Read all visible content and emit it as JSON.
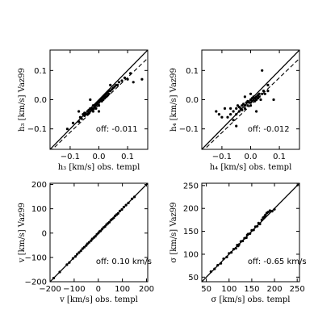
{
  "chart_data": [
    {
      "id": "h3",
      "type": "scatter",
      "title": "",
      "xlabel": "h₃ [km/s] obs. templ",
      "ylabel": "h₃ [km/s] Vaz99",
      "xlim": [
        -0.17,
        0.17
      ],
      "ylim": [
        -0.17,
        0.17
      ],
      "xticks": [
        -0.1,
        0.0,
        0.1
      ],
      "yticks": [
        -0.1,
        0.0,
        0.1
      ],
      "tick_labels": [
        "−0.1",
        "0.0",
        "0.1"
      ],
      "annotation": "off: -0.011",
      "identity_line": true,
      "offset_line": -0.011,
      "points": [
        [
          -0.11,
          -0.1
        ],
        [
          -0.09,
          -0.08
        ],
        [
          -0.07,
          -0.075
        ],
        [
          -0.065,
          -0.06
        ],
        [
          -0.06,
          -0.065
        ],
        [
          -0.055,
          -0.05
        ],
        [
          -0.05,
          -0.055
        ],
        [
          -0.05,
          -0.045
        ],
        [
          -0.045,
          -0.05
        ],
        [
          -0.04,
          -0.04
        ],
        [
          -0.04,
          -0.05
        ],
        [
          -0.035,
          -0.045
        ],
        [
          -0.035,
          -0.035
        ],
        [
          -0.03,
          -0.04
        ],
        [
          -0.03,
          -0.03
        ],
        [
          -0.025,
          -0.035
        ],
        [
          -0.025,
          -0.03
        ],
        [
          -0.02,
          -0.03
        ],
        [
          -0.02,
          -0.02
        ],
        [
          -0.02,
          -0.04
        ],
        [
          -0.015,
          -0.025
        ],
        [
          -0.015,
          -0.02
        ],
        [
          -0.01,
          -0.02
        ],
        [
          -0.01,
          -0.015
        ],
        [
          -0.01,
          -0.03
        ],
        [
          -0.005,
          -0.015
        ],
        [
          -0.005,
          -0.01
        ],
        [
          0.0,
          -0.01
        ],
        [
          0.0,
          -0.005
        ],
        [
          0.0,
          -0.02
        ],
        [
          0.005,
          -0.005
        ],
        [
          0.005,
          0.0
        ],
        [
          0.01,
          -0.005
        ],
        [
          0.01,
          0.0
        ],
        [
          0.01,
          0.005
        ],
        [
          0.015,
          0.0
        ],
        [
          0.015,
          0.01
        ],
        [
          0.02,
          0.005
        ],
        [
          0.02,
          0.01
        ],
        [
          0.02,
          0.015
        ],
        [
          0.025,
          0.01
        ],
        [
          0.025,
          0.02
        ],
        [
          0.03,
          0.015
        ],
        [
          0.03,
          0.025
        ],
        [
          0.035,
          0.02
        ],
        [
          0.035,
          0.03
        ],
        [
          0.04,
          0.03
        ],
        [
          0.045,
          0.035
        ],
        [
          0.05,
          0.04
        ],
        [
          0.055,
          0.045
        ],
        [
          0.06,
          0.05
        ],
        [
          0.065,
          0.05
        ],
        [
          0.07,
          0.06
        ],
        [
          0.08,
          0.065
        ],
        [
          0.09,
          0.075
        ],
        [
          0.1,
          0.07
        ],
        [
          0.11,
          0.09
        ],
        [
          0.15,
          0.07
        ],
        [
          0.12,
          0.06
        ],
        [
          -0.03,
          0.0
        ],
        [
          0.0,
          -0.04
        ],
        [
          -0.07,
          -0.04
        ],
        [
          0.04,
          0.05
        ]
      ]
    },
    {
      "id": "h4",
      "type": "scatter",
      "title": "",
      "xlabel": "h₄ [km/s] obs. templ",
      "ylabel": "h₄ [km/s] Vaz99",
      "xlim": [
        -0.17,
        0.17
      ],
      "ylim": [
        -0.17,
        0.17
      ],
      "xticks": [
        -0.1,
        0.0,
        0.1
      ],
      "yticks": [
        -0.1,
        0.0,
        0.1
      ],
      "tick_labels": [
        "−0.1",
        "0.0",
        "0.1"
      ],
      "annotation": "off: -0.012",
      "identity_line": true,
      "offset_line": -0.012,
      "points": [
        [
          -0.12,
          -0.04
        ],
        [
          -0.11,
          -0.05
        ],
        [
          -0.09,
          -0.03
        ],
        [
          -0.08,
          -0.06
        ],
        [
          -0.07,
          -0.05
        ],
        [
          -0.07,
          -0.03
        ],
        [
          -0.06,
          -0.07
        ],
        [
          -0.06,
          -0.04
        ],
        [
          -0.05,
          -0.05
        ],
        [
          -0.05,
          -0.03
        ],
        [
          -0.045,
          -0.02
        ],
        [
          -0.04,
          -0.04
        ],
        [
          -0.04,
          -0.025
        ],
        [
          -0.035,
          -0.03
        ],
        [
          -0.03,
          -0.02
        ],
        [
          -0.03,
          -0.035
        ],
        [
          -0.025,
          -0.015
        ],
        [
          -0.02,
          -0.02
        ],
        [
          -0.02,
          -0.03
        ],
        [
          -0.015,
          -0.01
        ],
        [
          -0.01,
          -0.02
        ],
        [
          -0.01,
          -0.005
        ],
        [
          -0.005,
          -0.01
        ],
        [
          0.0,
          -0.01
        ],
        [
          0.0,
          0.0
        ],
        [
          0.0,
          -0.02
        ],
        [
          0.005,
          -0.005
        ],
        [
          0.005,
          0.005
        ],
        [
          0.01,
          0.0
        ],
        [
          0.01,
          0.01
        ],
        [
          0.015,
          -0.005
        ],
        [
          0.015,
          0.005
        ],
        [
          0.02,
          0.0
        ],
        [
          0.02,
          0.01
        ],
        [
          0.025,
          0.005
        ],
        [
          0.025,
          0.015
        ],
        [
          0.03,
          0.01
        ],
        [
          0.03,
          0.02
        ],
        [
          0.035,
          0.0
        ],
        [
          0.04,
          0.02
        ],
        [
          0.045,
          0.03
        ],
        [
          0.05,
          0.02
        ],
        [
          0.06,
          0.03
        ],
        [
          0.02,
          -0.04
        ],
        [
          -0.02,
          0.01
        ],
        [
          0.0,
          0.02
        ],
        [
          0.04,
          0.1
        ],
        [
          0.06,
          0.05
        ],
        [
          -0.05,
          -0.09
        ],
        [
          0.08,
          0.0
        ],
        [
          -0.1,
          -0.06
        ]
      ]
    },
    {
      "id": "v",
      "type": "scatter",
      "title": "",
      "xlabel": "v [km/s] obs. templ",
      "ylabel": "v [km/s] Vaz99",
      "xlim": [
        -200,
        205
      ],
      "ylim": [
        -200,
        205
      ],
      "xticks": [
        -200,
        -100,
        0,
        100,
        200
      ],
      "yticks": [
        -200,
        -100,
        0,
        100,
        200
      ],
      "tick_labels": [
        "−200",
        "−100",
        "0",
        "100",
        "200"
      ],
      "annotation": "off: 0.10 km/s",
      "identity_line": true,
      "offset_line": null,
      "points": [
        [
          -185,
          -185
        ],
        [
          -160,
          -160
        ],
        [
          -130,
          -130
        ],
        [
          -120,
          -121
        ],
        [
          -105,
          -104
        ],
        [
          -95,
          -96
        ],
        [
          -88,
          -87
        ],
        [
          -80,
          -80
        ],
        [
          -72,
          -73
        ],
        [
          -65,
          -64
        ],
        [
          -58,
          -58
        ],
        [
          -50,
          -51
        ],
        [
          -45,
          -44
        ],
        [
          -38,
          -38
        ],
        [
          -30,
          -31
        ],
        [
          -25,
          -24
        ],
        [
          -18,
          -18
        ],
        [
          -12,
          -13
        ],
        [
          -6,
          -5
        ],
        [
          0,
          0
        ],
        [
          5,
          6
        ],
        [
          10,
          9
        ],
        [
          16,
          16
        ],
        [
          22,
          23
        ],
        [
          28,
          27
        ],
        [
          34,
          35
        ],
        [
          40,
          40
        ],
        [
          46,
          45
        ],
        [
          52,
          53
        ],
        [
          58,
          58
        ],
        [
          64,
          63
        ],
        [
          70,
          71
        ],
        [
          76,
          76
        ],
        [
          82,
          81
        ],
        [
          90,
          91
        ],
        [
          98,
          97
        ],
        [
          106,
          107
        ],
        [
          115,
          115
        ],
        [
          125,
          124
        ],
        [
          140,
          141
        ],
        [
          150,
          149
        ]
      ]
    },
    {
      "id": "sigma",
      "type": "scatter",
      "title": "",
      "xlabel": "σ [km/s] obs. templ",
      "ylabel": "σ [km/s] Vaz99",
      "xlim": [
        40,
        255
      ],
      "ylim": [
        40,
        255
      ],
      "xticks": [
        50,
        100,
        150,
        200,
        250
      ],
      "yticks": [
        50,
        100,
        150,
        200,
        250
      ],
      "tick_labels": [
        "50",
        "100",
        "150",
        "200",
        "250"
      ],
      "annotation": "off: -0.65 km/s",
      "identity_line": true,
      "offset_line": null,
      "points": [
        [
          60,
          62
        ],
        [
          68,
          68
        ],
        [
          75,
          76
        ],
        [
          82,
          80
        ],
        [
          88,
          90
        ],
        [
          95,
          94
        ],
        [
          100,
          102
        ],
        [
          105,
          104
        ],
        [
          110,
          111
        ],
        [
          115,
          113
        ],
        [
          118,
          120
        ],
        [
          122,
          121
        ],
        [
          126,
          128
        ],
        [
          130,
          129
        ],
        [
          134,
          135
        ],
        [
          138,
          136
        ],
        [
          142,
          144
        ],
        [
          146,
          145
        ],
        [
          150,
          152
        ],
        [
          154,
          153
        ],
        [
          158,
          160
        ],
        [
          162,
          161
        ],
        [
          165,
          168
        ],
        [
          168,
          166
        ],
        [
          172,
          175
        ],
        [
          175,
          180
        ],
        [
          178,
          182
        ],
        [
          180,
          186
        ],
        [
          183,
          190
        ],
        [
          186,
          192
        ],
        [
          190,
          195
        ],
        [
          195,
          194
        ],
        [
          200,
          198
        ],
        [
          140,
          142
        ],
        [
          120,
          118
        ]
      ]
    }
  ]
}
